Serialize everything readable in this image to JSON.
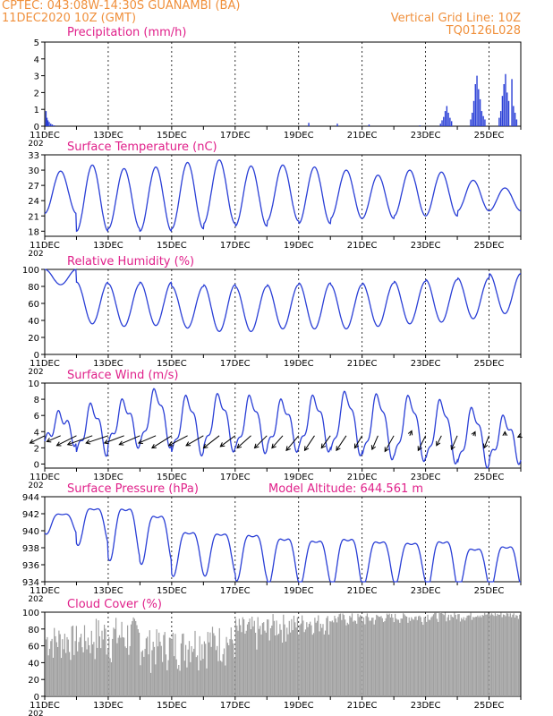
{
  "header": {
    "line1_left": "CPTEC:   043:08W-14:30S   GUANAMBI (BA)",
    "line2_left": "11DEC2020 10Z (GMT)",
    "line2_right": "Vertical Grid Line: 10Z",
    "line3_right": "TQ0126L028"
  },
  "colors": {
    "header": "#f0903c",
    "title": "#e0208a",
    "series": "#2a3fd6",
    "cloud": "#a0a0a0",
    "arrow": "#000000"
  },
  "x_ticks": [
    "11DEC",
    "13DEC",
    "15DEC",
    "17DEC",
    "19DEC",
    "21DEC",
    "23DEC",
    "25DEC"
  ],
  "panel_stub_label": "202",
  "chart_data": [
    {
      "id": "precipitation",
      "type": "bar",
      "title": "Precipitation (mm/h)",
      "ylim": [
        0,
        5
      ],
      "yticks": [
        "0",
        "1",
        "2",
        "3",
        "4",
        "5"
      ],
      "x_range_days": [
        0,
        15
      ],
      "bars": [
        [
          0.02,
          0.9
        ],
        [
          0.05,
          0.5
        ],
        [
          0.08,
          0.35
        ],
        [
          0.12,
          0.25
        ],
        [
          0.17,
          0.15
        ],
        [
          0.22,
          0.1
        ],
        [
          0.28,
          0.05
        ],
        [
          8.3,
          0.2
        ],
        [
          9.2,
          0.15
        ],
        [
          10.2,
          0.1
        ],
        [
          11.8,
          0.05
        ],
        [
          12.45,
          0.15
        ],
        [
          12.5,
          0.35
        ],
        [
          12.55,
          0.55
        ],
        [
          12.6,
          0.9
        ],
        [
          12.65,
          1.2
        ],
        [
          12.7,
          0.8
        ],
        [
          12.75,
          0.5
        ],
        [
          12.8,
          0.3
        ],
        [
          13.4,
          0.4
        ],
        [
          13.45,
          0.8
        ],
        [
          13.5,
          1.5
        ],
        [
          13.55,
          2.5
        ],
        [
          13.6,
          3.0
        ],
        [
          13.65,
          2.2
        ],
        [
          13.7,
          1.6
        ],
        [
          13.75,
          0.9
        ],
        [
          13.8,
          0.6
        ],
        [
          13.85,
          0.4
        ],
        [
          14.3,
          0.5
        ],
        [
          14.35,
          0.9
        ],
        [
          14.4,
          1.8
        ],
        [
          14.45,
          2.5
        ],
        [
          14.5,
          3.1
        ],
        [
          14.55,
          2.0
        ],
        [
          14.6,
          1.5
        ],
        [
          14.7,
          2.8
        ],
        [
          14.75,
          1.2
        ],
        [
          14.8,
          0.8
        ],
        [
          14.85,
          0.4
        ]
      ]
    },
    {
      "id": "temperature",
      "type": "line",
      "title": "Surface Temperature (nC)",
      "ylim": [
        17,
        33
      ],
      "yticks": [
        "18",
        "21",
        "24",
        "27",
        "30",
        "33"
      ],
      "x_range_days": [
        0,
        15
      ],
      "minmax": [
        [
          21.5,
          29.8
        ],
        [
          18.0,
          31.0
        ],
        [
          18.5,
          30.3
        ],
        [
          18.0,
          30.6
        ],
        [
          18.5,
          31.5
        ],
        [
          19.5,
          32.0
        ],
        [
          19.0,
          30.8
        ],
        [
          20.0,
          31.0
        ],
        [
          19.5,
          30.6
        ],
        [
          20.5,
          30.0
        ],
        [
          20.5,
          29.0
        ],
        [
          21.0,
          30.0
        ],
        [
          21.0,
          29.6
        ],
        [
          22.0,
          28.0
        ],
        [
          22.0,
          26.5
        ],
        [
          23.0,
          26.0
        ]
      ]
    },
    {
      "id": "humidity",
      "type": "line",
      "title": "Relative Humidity (%)",
      "ylim": [
        0,
        100
      ],
      "yticks": [
        "0",
        "20",
        "40",
        "60",
        "80",
        "100"
      ],
      "x_range_days": [
        0,
        15
      ],
      "minmax": [
        [
          82,
          100
        ],
        [
          36,
          85
        ],
        [
          33,
          83
        ],
        [
          34,
          85
        ],
        [
          31,
          80
        ],
        [
          27,
          82
        ],
        [
          27,
          80
        ],
        [
          30,
          82
        ],
        [
          30,
          84
        ],
        [
          30,
          82
        ],
        [
          33,
          84
        ],
        [
          36,
          86
        ],
        [
          38,
          88
        ],
        [
          42,
          90
        ],
        [
          48,
          95
        ],
        [
          60,
          97
        ]
      ]
    },
    {
      "id": "wind",
      "type": "line",
      "title": "Surface Wind (m/s)",
      "ylim": [
        -0.5,
        10
      ],
      "yticks": [
        "0",
        "2",
        "4",
        "6",
        "8",
        "10"
      ],
      "x_range_days": [
        0,
        15
      ],
      "minmax": [
        [
          2.8,
          6.0
        ],
        [
          1.5,
          7.0
        ],
        [
          2.5,
          7.5
        ],
        [
          2.5,
          8.8
        ],
        [
          1.5,
          8.0
        ],
        [
          2.0,
          8.2
        ],
        [
          1.8,
          8.0
        ],
        [
          2.0,
          7.5
        ],
        [
          2.0,
          8.0
        ],
        [
          1.5,
          8.5
        ],
        [
          1.0,
          8.2
        ],
        [
          0.8,
          8.0
        ],
        [
          0.5,
          7.5
        ],
        [
          0.0,
          6.5
        ],
        [
          0.5,
          5.5
        ],
        [
          2.0,
          5.0
        ]
      ],
      "arrows_uv": [
        [
          0.0,
          -3.0,
          -1.5
        ],
        [
          0.5,
          -2.8,
          -1.2
        ],
        [
          1.0,
          -4.0,
          -2.0
        ],
        [
          1.5,
          -5.0,
          -1.8
        ],
        [
          2.0,
          -4.5,
          -1.5
        ],
        [
          2.5,
          -4.0,
          -1.5
        ],
        [
          3.0,
          -4.2,
          -1.8
        ],
        [
          3.5,
          -3.5,
          -1.5
        ],
        [
          4.0,
          -4.0,
          -2.5
        ],
        [
          4.5,
          -3.8,
          -2.0
        ],
        [
          5.0,
          -3.5,
          -2.0
        ],
        [
          5.5,
          -3.2,
          -2.5
        ],
        [
          6.0,
          -3.0,
          -2.2
        ],
        [
          6.5,
          -2.8,
          -2.5
        ],
        [
          7.0,
          -2.5,
          -2.5
        ],
        [
          7.5,
          -2.2,
          -2.5
        ],
        [
          8.0,
          -2.5,
          -3.0
        ],
        [
          8.5,
          -2.0,
          -3.0
        ],
        [
          9.0,
          -1.8,
          -2.5
        ],
        [
          9.5,
          -2.0,
          -3.0
        ],
        [
          10.0,
          -1.5,
          -2.5
        ],
        [
          10.5,
          -1.2,
          -2.8
        ],
        [
          11.0,
          -1.8,
          -3.2
        ],
        [
          11.5,
          0.4,
          1.0
        ],
        [
          12.0,
          -1.5,
          -3.0
        ],
        [
          12.5,
          -1.0,
          -2.0
        ],
        [
          13.0,
          -1.2,
          -2.8
        ],
        [
          13.5,
          0.4,
          0.8
        ],
        [
          14.0,
          -1.0,
          -2.5
        ],
        [
          14.5,
          0.0,
          0.8
        ],
        [
          15.0,
          -0.6,
          -0.3
        ]
      ]
    },
    {
      "id": "pressure",
      "type": "line",
      "title": "Surface Pressure (hPa)",
      "subtitle": "Model Altitude: 644.561  m",
      "ylim": [
        934,
        944
      ],
      "yticks": [
        "934",
        "936",
        "938",
        "940",
        "942",
        "944"
      ],
      "x_range_days": [
        0,
        15
      ],
      "minmax": [
        [
          940.0,
          942.3
        ],
        [
          939.0,
          943.2
        ],
        [
          937.5,
          943.4
        ],
        [
          937.0,
          942.5
        ],
        [
          935.5,
          940.5
        ],
        [
          935.5,
          940.3
        ],
        [
          935.0,
          940.2
        ],
        [
          934.5,
          939.8
        ],
        [
          934.5,
          939.5
        ],
        [
          934.2,
          939.8
        ],
        [
          934.5,
          939.4
        ],
        [
          934.5,
          939.2
        ],
        [
          934.0,
          939.5
        ],
        [
          934.0,
          938.5
        ],
        [
          934.0,
          938.8
        ],
        [
          934.0,
          938.0
        ]
      ]
    },
    {
      "id": "cloud",
      "type": "bar",
      "title": "Cloud Cover (%)",
      "ylim": [
        0,
        100
      ],
      "yticks": [
        "0",
        "20",
        "40",
        "60",
        "80",
        "100"
      ],
      "x_range_days": [
        0,
        15
      ],
      "segments": [
        [
          0.0,
          1.5,
          35,
          85
        ],
        [
          1.5,
          3.0,
          30,
          95
        ],
        [
          3.0,
          4.5,
          25,
          80
        ],
        [
          4.5,
          6.0,
          30,
          85
        ],
        [
          6.0,
          7.0,
          45,
          95
        ],
        [
          7.0,
          8.0,
          60,
          98
        ],
        [
          8.0,
          9.0,
          70,
          98
        ],
        [
          9.0,
          10.5,
          80,
          99
        ],
        [
          10.5,
          12.0,
          85,
          99
        ],
        [
          12.0,
          13.5,
          88,
          100
        ],
        [
          13.5,
          15.0,
          92,
          100
        ]
      ]
    }
  ]
}
